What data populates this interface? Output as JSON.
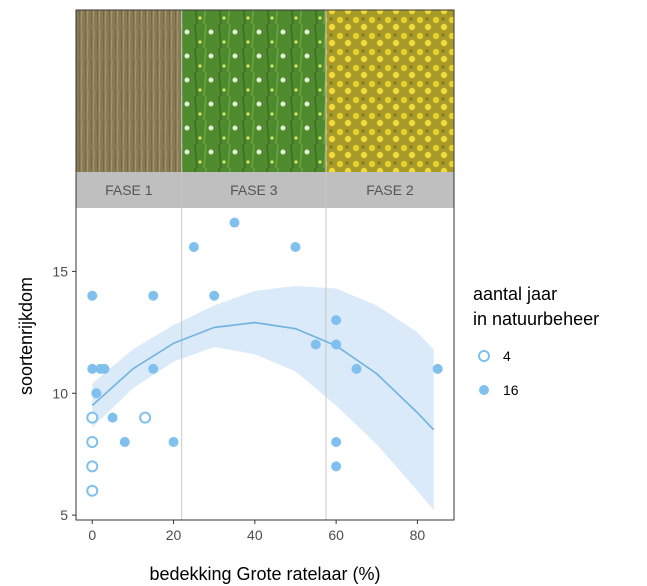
{
  "chart_data": {
    "type": "scatter",
    "xlabel": "bedekking Grote ratelaar (%)",
    "ylabel": "soortenrijkdom",
    "xlim": [
      -4,
      89
    ],
    "ylim": [
      4.8,
      17.6
    ],
    "xticks": [
      0,
      20,
      40,
      60,
      80
    ],
    "yticks": [
      5,
      10,
      15
    ],
    "grid": false,
    "phase_boundaries": [
      22,
      57.5
    ],
    "phases": [
      {
        "label": "FASE 1",
        "photo": "dry-grass-meadow"
      },
      {
        "label": "FASE 3",
        "photo": "flowering-meadow-with-daisies"
      },
      {
        "label": "FASE 2",
        "photo": "yellow-rattle-field"
      }
    ],
    "legend": {
      "title_lines": [
        "aantal jaar",
        "in natuurbeheer"
      ],
      "position": "right",
      "entries": [
        {
          "label": "4",
          "marker": "open-circle"
        },
        {
          "label": "16",
          "marker": "filled-circle"
        }
      ]
    },
    "colors": {
      "points": "#7fc0ee",
      "fit_line": "#6fb2e0",
      "band": "#d6e8f8",
      "divider": "#c8c8c8",
      "phase_bar": "#bfbfbf",
      "frame": "#333333"
    },
    "series": [
      {
        "name": "4",
        "marker": "open",
        "points": [
          [
            0,
            9
          ],
          [
            0,
            8
          ],
          [
            0,
            7
          ],
          [
            0,
            6
          ],
          [
            13,
            9
          ]
        ]
      },
      {
        "name": "16",
        "marker": "filled",
        "points": [
          [
            0,
            14
          ],
          [
            0,
            11
          ],
          [
            2,
            11
          ],
          [
            3,
            11
          ],
          [
            1,
            10
          ],
          [
            5,
            9
          ],
          [
            8,
            8
          ],
          [
            15,
            14
          ],
          [
            15,
            11
          ],
          [
            20,
            8
          ],
          [
            25,
            16
          ],
          [
            30,
            14
          ],
          [
            35,
            17
          ],
          [
            50,
            16
          ],
          [
            55,
            12
          ],
          [
            60,
            13
          ],
          [
            60,
            12
          ],
          [
            60,
            8
          ],
          [
            60,
            7
          ],
          [
            65,
            11
          ],
          [
            85,
            11
          ]
        ]
      }
    ],
    "fit": {
      "type": "quadratic",
      "x": [
        0,
        10,
        20,
        30,
        40,
        50,
        60,
        70,
        80,
        84
      ],
      "y": [
        9.5,
        11.0,
        12.05,
        12.7,
        12.9,
        12.65,
        11.95,
        10.8,
        9.2,
        8.5
      ],
      "ci_lower": [
        8.6,
        10.2,
        11.3,
        11.9,
        11.6,
        10.9,
        9.5,
        7.9,
        6.0,
        5.2
      ],
      "ci_upper": [
        10.4,
        11.8,
        12.8,
        13.6,
        14.2,
        14.4,
        14.3,
        13.6,
        12.5,
        11.8
      ]
    }
  }
}
